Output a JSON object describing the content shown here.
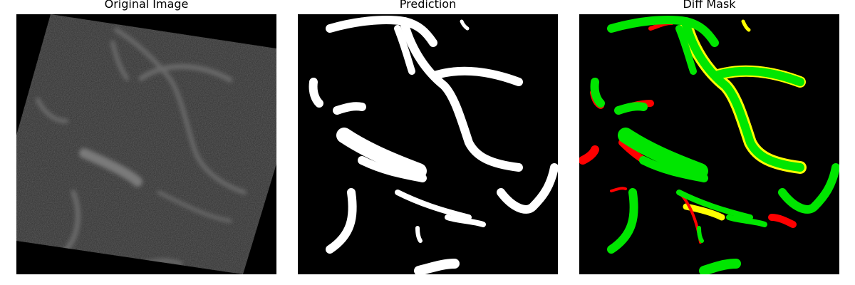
{
  "panels": [
    {
      "title": "Original Image"
    },
    {
      "title": "Prediction"
    },
    {
      "title": "Diff Mask"
    }
  ],
  "colors": {
    "background": "#ffffff",
    "image_background": "#000000",
    "prediction_fg": "#ffffff",
    "diff_match": "#00e600",
    "diff_false_positive": "#ff0000",
    "diff_false_negative": "#ffff00"
  }
}
